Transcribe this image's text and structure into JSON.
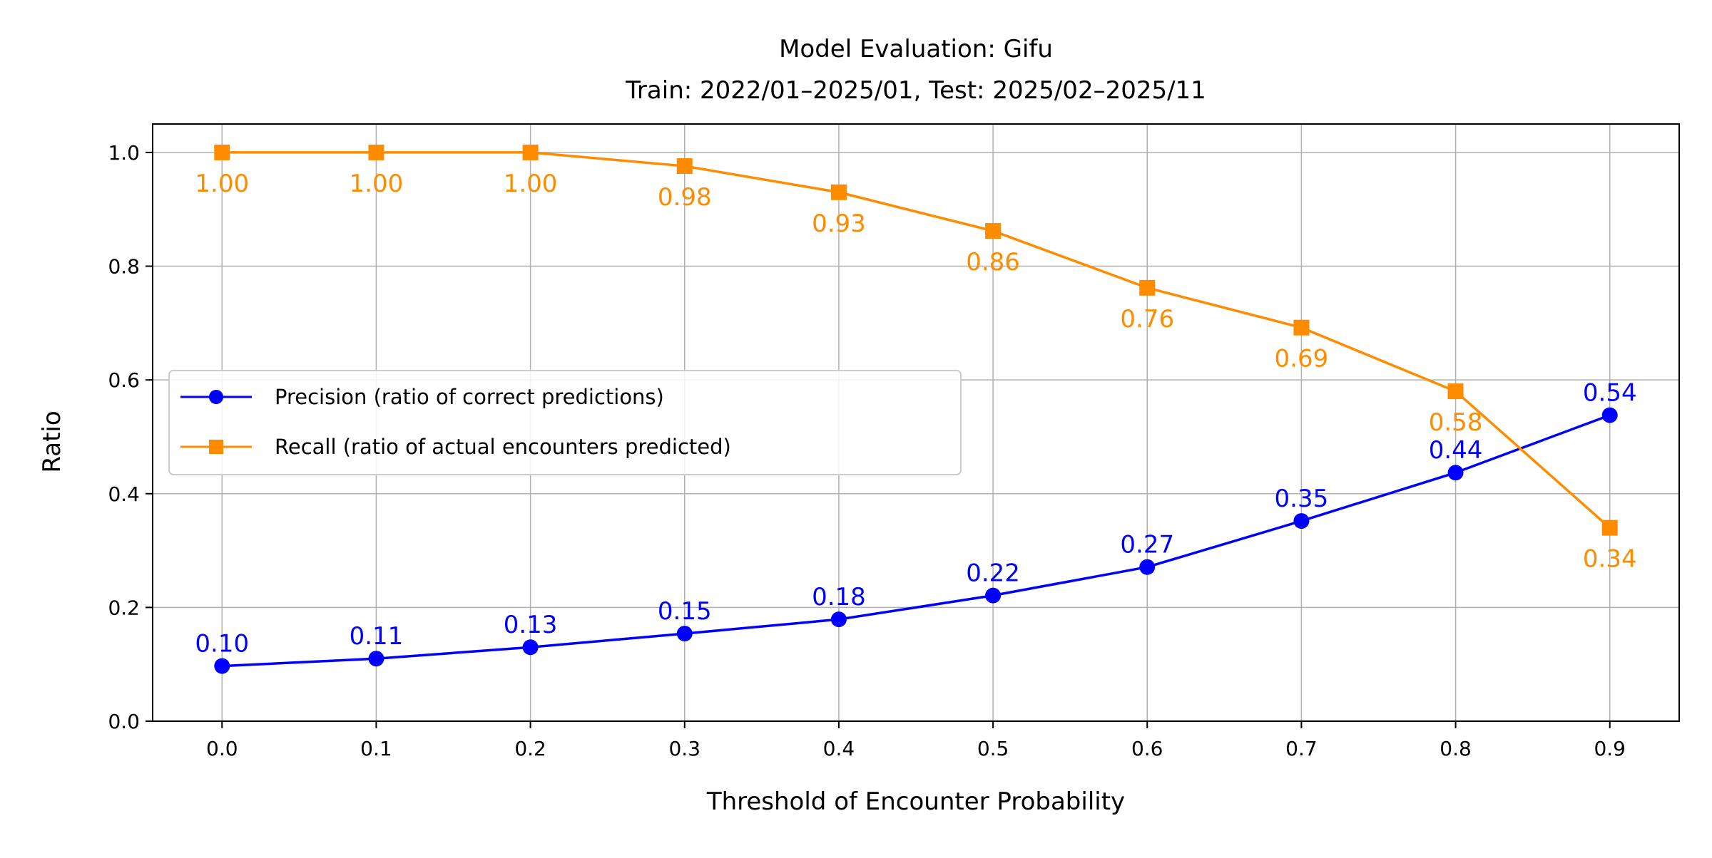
{
  "chart_data": {
    "type": "line",
    "title": "Model Evaluation: Gifu",
    "subtitle": "Train: 2022/01–2025/01, Test: 2025/02–2025/11",
    "xlabel": "Threshold of Encounter Probability",
    "ylabel": "Ratio",
    "x": [
      0.0,
      0.1,
      0.2,
      0.3,
      0.4,
      0.5,
      0.6,
      0.7,
      0.8,
      0.9
    ],
    "x_tick_labels": [
      "0.0",
      "0.1",
      "0.2",
      "0.3",
      "0.4",
      "0.5",
      "0.6",
      "0.7",
      "0.8",
      "0.9"
    ],
    "y_ticks": [
      0.0,
      0.2,
      0.4,
      0.6,
      0.8,
      1.0
    ],
    "y_tick_labels": [
      "0.0",
      "0.2",
      "0.4",
      "0.6",
      "0.8",
      "1.0"
    ],
    "xlim": [
      -0.045,
      0.945
    ],
    "ylim": [
      0.0,
      1.05
    ],
    "grid": true,
    "legend_position": "center-left",
    "series": [
      {
        "name": "Precision (ratio of correct predictions)",
        "color": "#0000ff",
        "marker": "circle",
        "values": [
          0.097,
          0.11,
          0.13,
          0.154,
          0.179,
          0.221,
          0.271,
          0.352,
          0.437,
          0.538
        ],
        "labels": [
          "0.10",
          "0.11",
          "0.13",
          "0.15",
          "0.18",
          "0.22",
          "0.27",
          "0.35",
          "0.44",
          "0.54"
        ],
        "label_position": "above"
      },
      {
        "name": "Recall (ratio of actual encounters predicted)",
        "color": "#ff8c00",
        "marker": "square",
        "values": [
          1.0,
          1.0,
          1.0,
          0.976,
          0.93,
          0.862,
          0.762,
          0.692,
          0.58,
          0.34
        ],
        "labels": [
          "1.00",
          "1.00",
          "1.00",
          "0.98",
          "0.93",
          "0.86",
          "0.76",
          "0.69",
          "0.58",
          "0.34"
        ],
        "label_position": "below"
      }
    ]
  }
}
